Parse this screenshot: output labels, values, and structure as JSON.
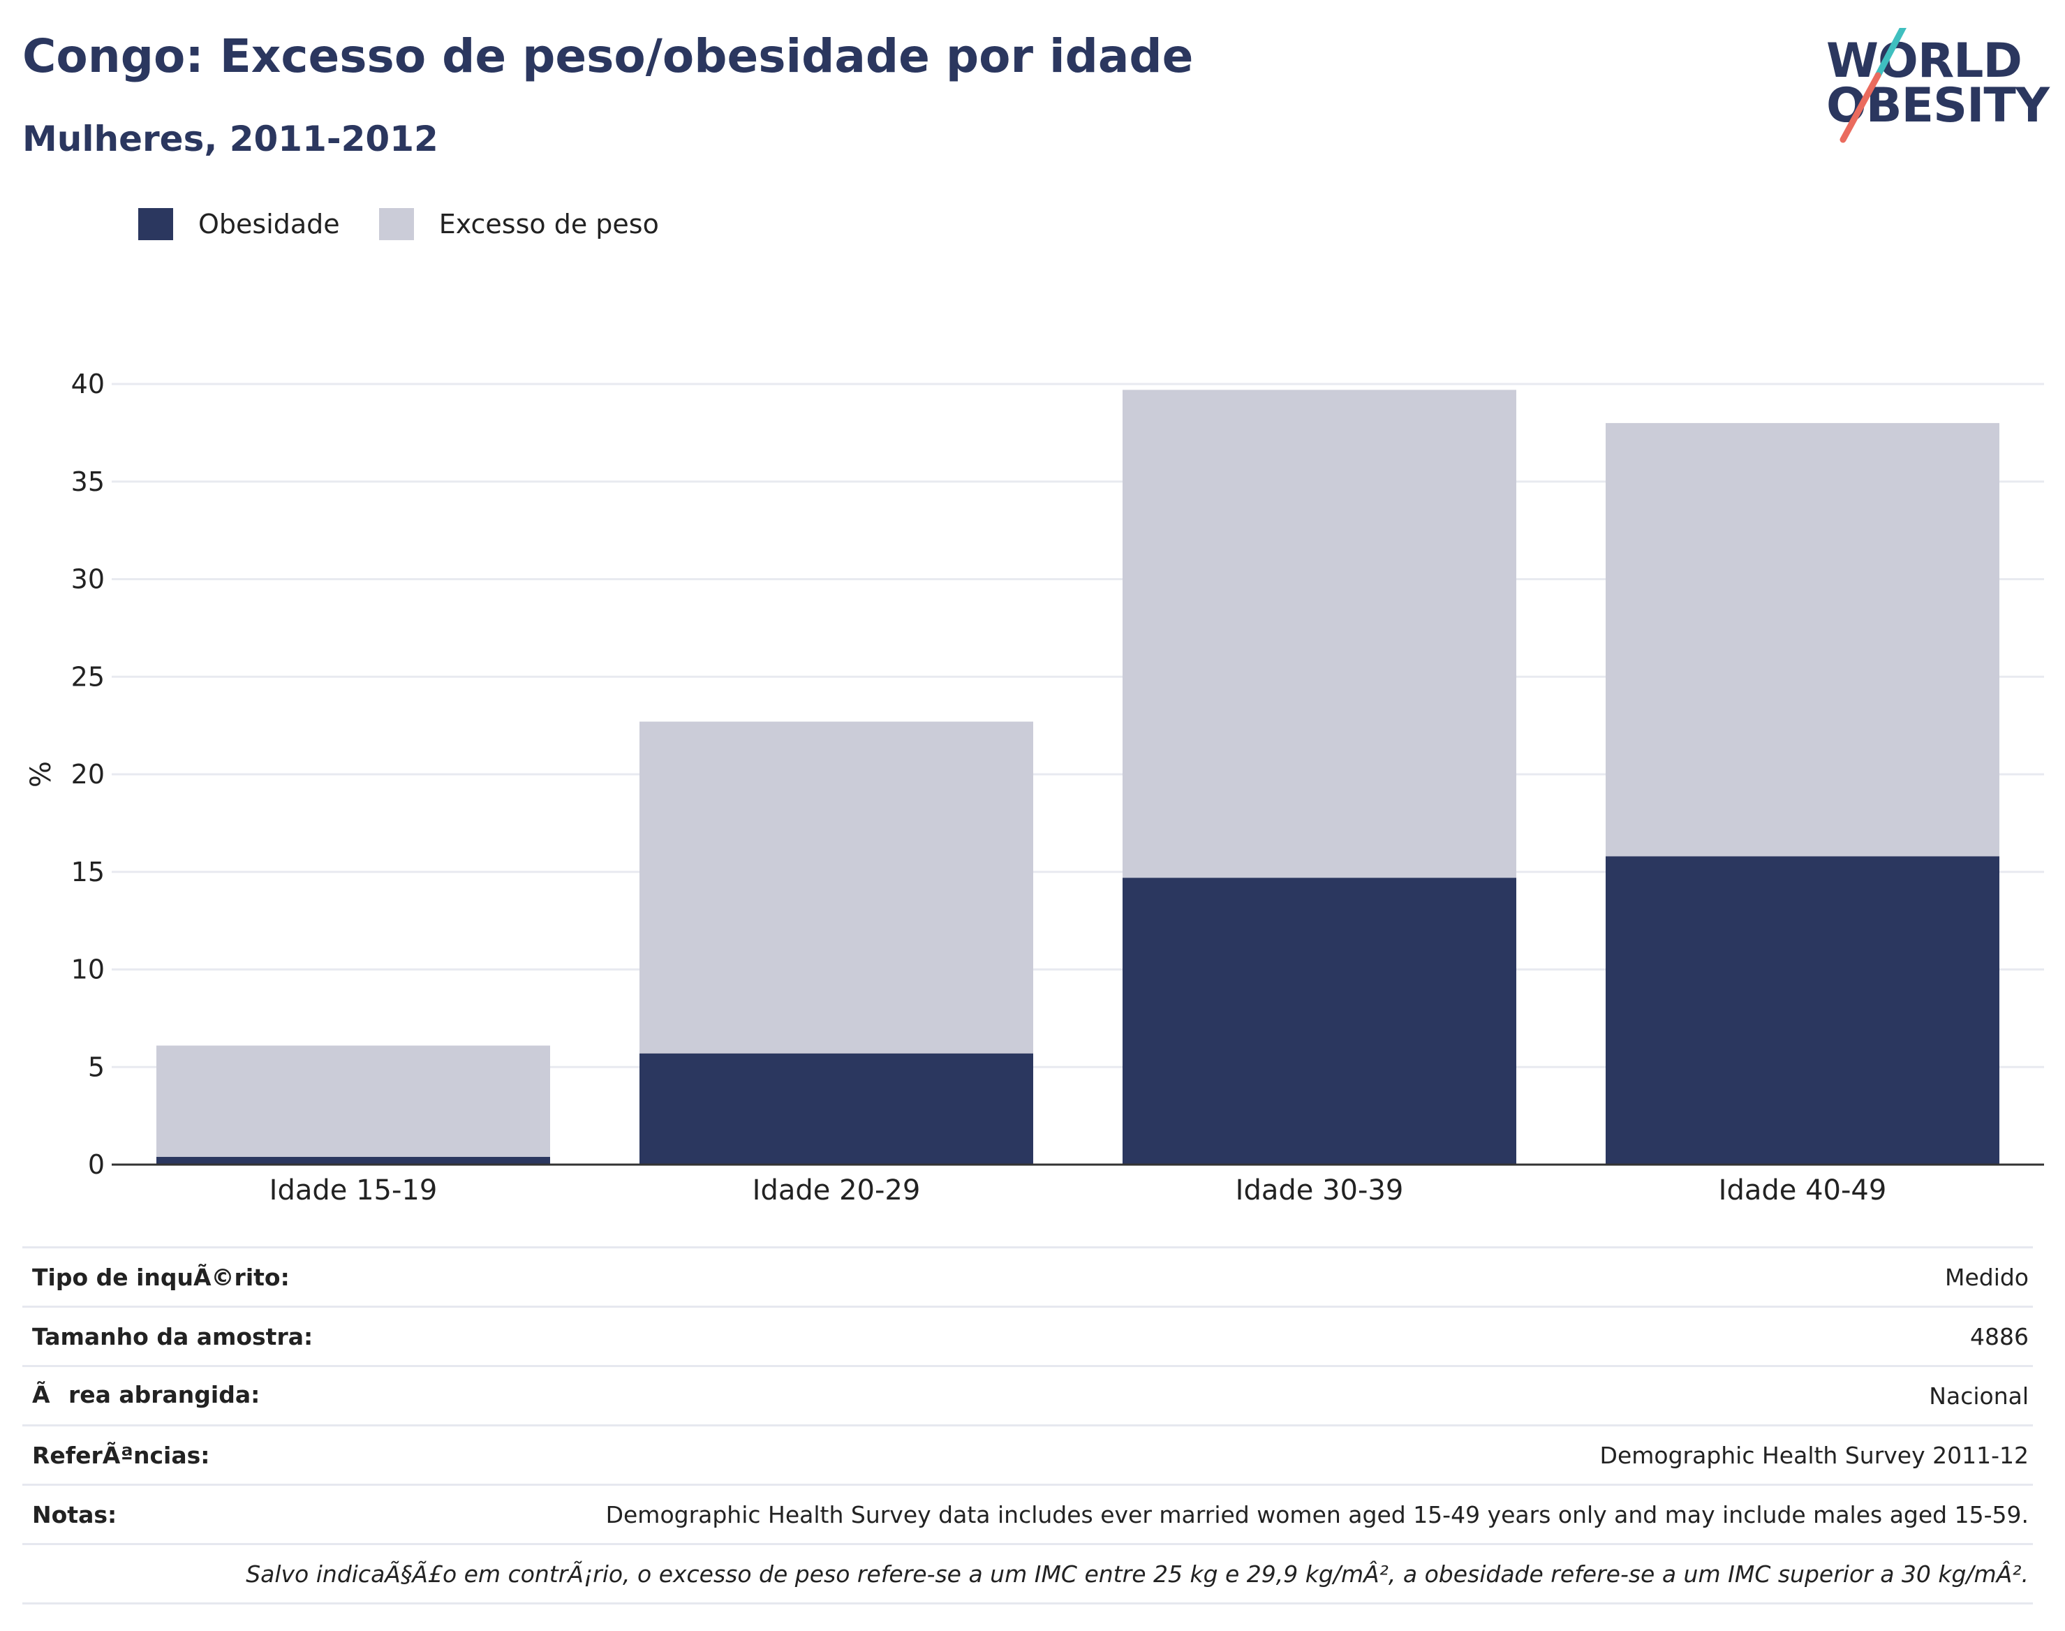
{
  "header": {
    "title": "Congo: Excesso de peso/obesidade por idade",
    "subtitle": "Mulheres, 2011-2012"
  },
  "logo": {
    "line1": "WORLD",
    "line2": "OBESITY"
  },
  "colors": {
    "obesity": "#2b375f",
    "overweight": "#cbccd8",
    "title": "#2b375f",
    "logo_teal": "#3fbfbf",
    "logo_coral": "#ea6b5e",
    "grid": "#e8eaf0",
    "axis": "#333333"
  },
  "legend": [
    {
      "label": "Obesidade",
      "color": "#2b375f"
    },
    {
      "label": "Excesso de peso",
      "color": "#cbccd8"
    }
  ],
  "chart_data": {
    "type": "bar",
    "stacked": true,
    "title": "Congo: Excesso de peso/obesidade por idade",
    "subtitle": "Mulheres, 2011-2012",
    "ylabel": "%",
    "ylim": [
      0,
      40
    ],
    "yticks": [
      0,
      5,
      10,
      15,
      20,
      25,
      30,
      35,
      40
    ],
    "grid": true,
    "legend_position": "top-left",
    "categories": [
      "Idade 15-19",
      "Idade 20-29",
      "Idade 30-39",
      "Idade 40-49"
    ],
    "series": [
      {
        "name": "Obesidade",
        "values": [
          0.4,
          5.7,
          14.7,
          15.8
        ]
      },
      {
        "name": "Excesso de peso",
        "values": [
          5.7,
          17.0,
          25.0,
          22.2
        ]
      }
    ]
  },
  "info_table": [
    {
      "label": "Tipo de inquÃ©rito:",
      "value": "Medido"
    },
    {
      "label": "Tamanho da amostra:",
      "value": "4886"
    },
    {
      "label": "Ãrea abrangida:",
      "value": "Nacional"
    },
    {
      "label": "ReferÃªncias:",
      "value": "Demographic Health Survey 2011-12"
    },
    {
      "label": "Notas:",
      "value": "Demographic Health Survey data includes ever married women aged 15-49 years only and may include males aged 15-59."
    }
  ],
  "footnote": "Salvo indicaÃ§Ã£o em contrÃ¡rio, o excesso de peso refere-se a um IMC entre 25 kg e 29,9 kg/mÂ², a obesidade refere-se a um IMC superior a 30 kg/mÂ²."
}
